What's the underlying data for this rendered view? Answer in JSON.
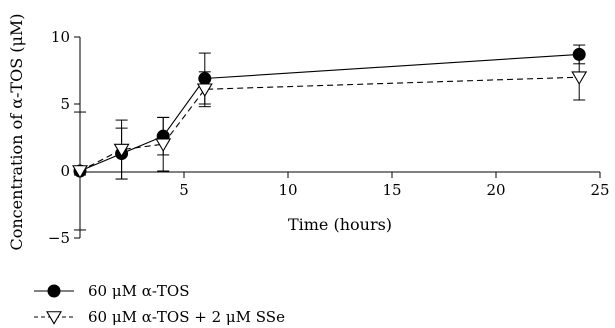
{
  "chart_data": {
    "type": "line",
    "xlabel": "Time (hours)",
    "ylabel": "Concentration of α-TOS (μM)",
    "xlim": [
      0,
      25
    ],
    "ylim": [
      -5,
      10
    ],
    "x_ticks": [
      5,
      10,
      15,
      20,
      25
    ],
    "y_ticks": [
      -5,
      0,
      5,
      10
    ],
    "x_tick_labels": [
      "5",
      "10",
      "15",
      "20",
      "25"
    ],
    "y_tick_labels": [
      "−5",
      "0",
      "5",
      "10"
    ],
    "legend_position": "bottom-left",
    "grid": false,
    "series": [
      {
        "name": "60 μM α-TOS",
        "marker": "filled-circle",
        "line_style": "solid",
        "x": [
          0,
          2,
          4,
          6,
          24
        ],
        "y": [
          0,
          1.3,
          2.6,
          6.9,
          8.7
        ],
        "err": [
          0.3,
          1.9,
          1.4,
          1.9,
          0.7
        ]
      },
      {
        "name": "60 μM α-TOS + 2 μM SSe",
        "marker": "open-triangle-down",
        "line_style": "dashed",
        "x": [
          0,
          2,
          4,
          6,
          24
        ],
        "y": [
          0,
          1.6,
          2.0,
          6.1,
          7.0
        ],
        "err": [
          4.4,
          2.2,
          2.0,
          1.3,
          1.7
        ]
      }
    ]
  }
}
